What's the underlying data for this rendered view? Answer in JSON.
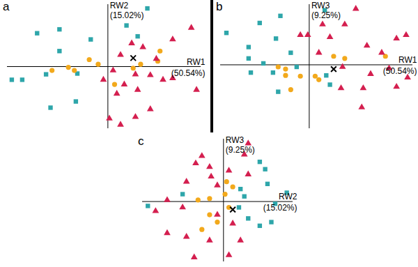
{
  "chart_data": [
    {
      "type": "scatter",
      "title": "a",
      "x_label": "RW1\n(50.54%)",
      "y_label": "RW2\n(15.02%)",
      "xlim": [
        -13.5,
        12.5
      ],
      "ylim": [
        -8,
        8
      ],
      "tick_labels": false,
      "series": [
        {
          "color": "#2ea6aa",
          "marker": "square",
          "x": [
            5.3,
            2.5,
            4.0,
            -2.3,
            -9.5,
            -6.5,
            -6.5,
            -11.5,
            -12.9,
            -8.3,
            -7.7,
            -4.1,
            -4.3
          ],
          "y": [
            7.5,
            5.3,
            3.9,
            3.5,
            4.3,
            4.8,
            2.0,
            -1.7,
            -1.7,
            -1.0,
            -5.3,
            -0.9,
            -4.5
          ]
        },
        {
          "color": "#f2a91c",
          "marker": "circle",
          "x": [
            -7.5,
            -5.3,
            -4.5,
            -2.5,
            -1.3,
            0.9,
            3.4,
            4.4,
            7.0,
            6.7
          ],
          "y": [
            -0.5,
            -0.1,
            -0.5,
            0.9,
            0.3,
            -2.3,
            -0.2,
            0.3,
            2.0,
            0.7
          ]
        },
        {
          "color": "#d41f4f",
          "marker": "triangle",
          "x": [
            1.7,
            3.2,
            4.7,
            6.5,
            8.7,
            7.4,
            5.7,
            3.7,
            0.7,
            2.2,
            4.0,
            1.2,
            0.2,
            1.7,
            3.7,
            5.7,
            8.7,
            11.9,
            11.2,
            -0.6
          ],
          "y": [
            1.5,
            3.0,
            2.5,
            1.0,
            3.5,
            -1.7,
            -1.1,
            -1.0,
            -0.5,
            -2.3,
            -3.0,
            -3.5,
            -6.7,
            -7.5,
            -6.5,
            -5.5,
            -1.5,
            -3.0,
            5.0,
            -1.7
          ]
        },
        {
          "color": "#000000",
          "marker": "x",
          "x": [
            3.4
          ],
          "y": [
            1.1
          ]
        }
      ]
    },
    {
      "type": "scatter",
      "title": "b",
      "x_label": "RW1\n(50.54%)",
      "y_label": "RW3\n(9.25%)",
      "xlim": [
        -12,
        14
      ],
      "ylim": [
        -9,
        8.5
      ],
      "tick_labels": false,
      "series": [
        {
          "color": "#2ea6aa",
          "marker": "square",
          "x": [
            -11.2,
            -8.2,
            -6.7,
            -8.2,
            -6.2,
            -4.5,
            -3.9,
            -2.5,
            2.1,
            -7.9,
            -4.9,
            -4.2,
            -1.7,
            2.3,
            2.8
          ],
          "y": [
            4.5,
            2.5,
            5.9,
            0.9,
            0.2,
            3.7,
            6.9,
            1.7,
            7.7,
            -1.1,
            -1.1,
            -3.8,
            -0.3,
            -1.5,
            -2.8
          ]
        },
        {
          "color": "#f2a91c",
          "marker": "circle",
          "x": [
            -4.2,
            -3.2,
            -2.5,
            -1.2,
            0.8,
            1.3,
            3.3,
            4.8,
            10.3,
            -3.2
          ],
          "y": [
            -0.3,
            -0.6,
            -3.5,
            -1.6,
            -1.6,
            -2.1,
            1.2,
            0.9,
            1.2,
            -1.5
          ]
        },
        {
          "color": "#d41f4f",
          "marker": "triangle",
          "x": [
            -0.2,
            2.8,
            4.8,
            6.3,
            7.8,
            9.8,
            11.8,
            13.1,
            10.8,
            11.8,
            7.3,
            4.3,
            7.1,
            4.5,
            1.3,
            1.8,
            -1.2,
            8.3,
            13.3
          ],
          "y": [
            4.2,
            3.9,
            5.7,
            7.9,
            2.7,
            1.7,
            3.7,
            4.2,
            -0.5,
            -3.1,
            -3.3,
            -3.3,
            -6.0,
            -0.3,
            1.7,
            5.7,
            4.2,
            -1.3,
            -1.8
          ]
        },
        {
          "color": "#000000",
          "marker": "x",
          "x": [
            3.3
          ],
          "y": [
            -0.6
          ]
        }
      ]
    },
    {
      "type": "scatter",
      "title": "c",
      "x_label": "RW2\n(15.02%)",
      "y_label": "RW3\n(9.25%)",
      "xlim": [
        -10.5,
        9
      ],
      "ylim": [
        -8.2,
        8.5
      ],
      "tick_labels": false,
      "series": [
        {
          "color": "#2ea6aa",
          "marker": "square",
          "x": [
            4.7,
            5.4,
            5.7,
            2.2,
            2.7,
            -9.8,
            -5.3,
            8.2,
            6.7,
            3.2,
            6.2,
            4.7,
            2.0
          ],
          "y": [
            5.4,
            4.4,
            2.4,
            1.7,
            0.7,
            -0.6,
            1.0,
            1.2,
            -0.3,
            -2.3,
            -2.8,
            -3.3,
            -0.8
          ]
        },
        {
          "color": "#f2a91c",
          "marker": "circle",
          "x": [
            -3.3,
            -1.8,
            0.2,
            0.7,
            -1.8,
            -0.8,
            -2.8,
            1.2,
            0.4
          ],
          "y": [
            0.2,
            0.4,
            1.0,
            -0.8,
            -1.8,
            -2.8,
            -3.8,
            2.0,
            2.7
          ]
        },
        {
          "color": "#d41f4f",
          "marker": "triangle",
          "x": [
            3.2,
            2.7,
            -2.8,
            -3.6,
            -1.8,
            0.7,
            3.2,
            -1.6,
            -4.8,
            -0.8,
            -7.3,
            -5.3,
            -8.8,
            -0.8,
            1.2,
            -7.3,
            -4.8,
            -1.8,
            2.2,
            -3.8,
            0.7
          ],
          "y": [
            7.9,
            6.4,
            6.2,
            5.2,
            4.7,
            4.2,
            3.7,
            3.4,
            2.7,
            2.2,
            0.2,
            -0.8,
            -1.3,
            -1.8,
            -3.0,
            -4.3,
            -4.8,
            -5.3,
            -5.3,
            -7.6,
            -7.3
          ]
        },
        {
          "color": "#000000",
          "marker": "x",
          "x": [
            1.2
          ],
          "y": [
            -1.1
          ]
        }
      ]
    }
  ]
}
